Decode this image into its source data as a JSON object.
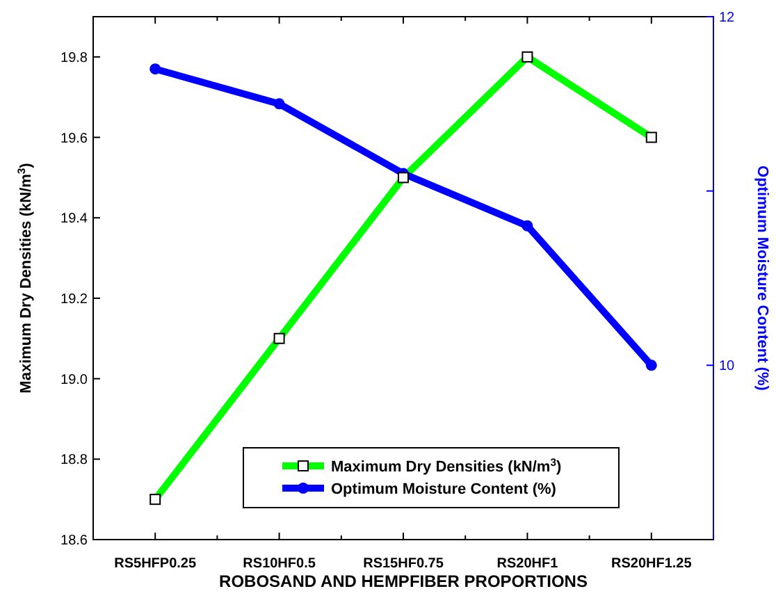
{
  "chart_data": {
    "type": "line",
    "xlabel": "ROBOSAND AND HEMPFIBER PROPORTIONS",
    "ylabel": "Maximum Dry Densities (kN/m$^{3}$)",
    "y2label": "Optimum Moisture Content (%)",
    "categories": [
      "RS5HFP0.25",
      "RS10HF0.5",
      "RS15HF0.75",
      "RS20HF1",
      "RS20HF1.25"
    ],
    "series": [
      {
        "name": "Maximum Dry Densities (kN/m$^{3}$)",
        "color": "#00ff00",
        "values": [
          18.7,
          19.1,
          19.5,
          19.8,
          19.6
        ],
        "marker": "square"
      },
      {
        "name": "Optimum Moisture Content (%)",
        "color": "#0000ff",
        "values": [
          11.7,
          11.5,
          11.1,
          10.8,
          10.0
        ],
        "marker": "circle",
        "axis": "y2"
      }
    ],
    "ylim": [
      18.6,
      19.9
    ],
    "yticks": [
      18.6,
      18.8,
      {
        "value": 19,
        "label": "19.0"
      },
      19.2,
      19.4,
      19.6,
      19.8
    ],
    "y2lim": [
      9,
      12
    ],
    "y2ticks": [
      10,
      {
        "value": 11,
        "label": null
      },
      12
    ],
    "grid": false,
    "legend": "bottom"
  }
}
